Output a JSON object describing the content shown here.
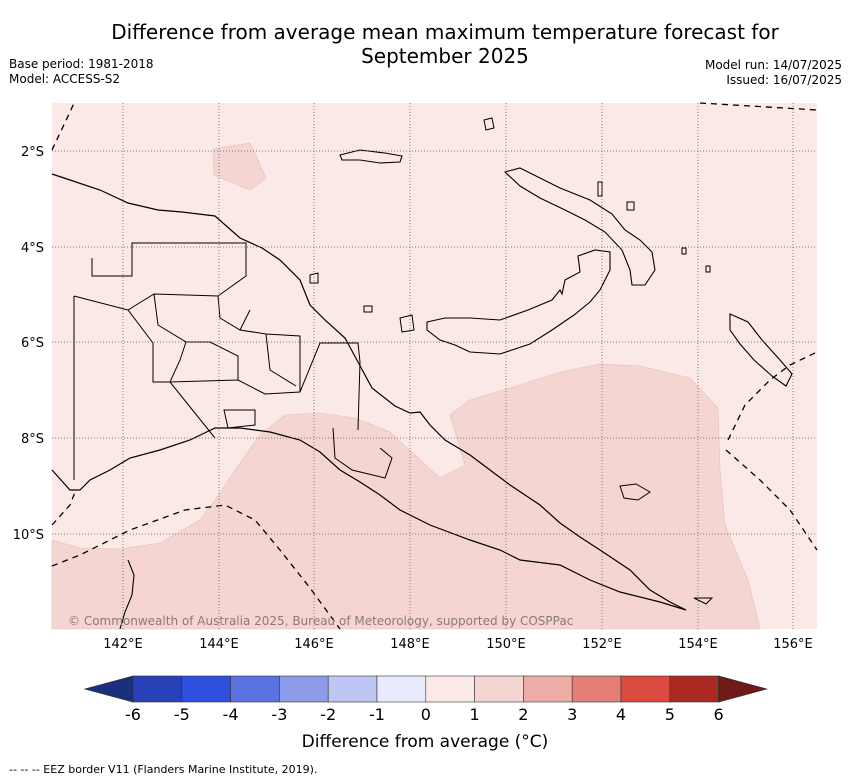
{
  "title": {
    "line1": "Difference from average mean maximum temperature forecast for",
    "line2": "September 2025"
  },
  "meta_left": {
    "base_period": "Base period: 1981-2018",
    "model": "Model: ACCESS-S2"
  },
  "meta_right": {
    "model_run": "Model run: 14/07/2025",
    "issued": "Issued: 16/07/2025"
  },
  "map": {
    "lat_labels": [
      "2°S",
      "4°S",
      "6°S",
      "8°S",
      "10°S"
    ],
    "lon_labels": [
      "142°E",
      "144°E",
      "146°E",
      "148°E",
      "150°E",
      "152°E",
      "154°E",
      "156°E"
    ],
    "credit": "© Commonwealth of Australia 2025, Bureau of Meteorology, supported by COSPPac",
    "base_fill_color": "#fbe9e7",
    "warm_fill_color": "#f5d5d1"
  },
  "colorbar": {
    "ticks": [
      "-6",
      "-5",
      "-4",
      "-3",
      "-2",
      "-1",
      "0",
      "1",
      "2",
      "3",
      "4",
      "5",
      "6"
    ],
    "colors": [
      "#1b2f7e",
      "#2742b8",
      "#2f4fdf",
      "#5b72e3",
      "#8c9bea",
      "#c0c6f3",
      "#e8ebfb",
      "#fbe9e7",
      "#f5d5d1",
      "#eeaca6",
      "#e47f78",
      "#db4b3f",
      "#aa2a23",
      "#6e1a16"
    ],
    "label": "Difference from average (°C)"
  },
  "footnote": "--  --  -- EEZ border V11 (Flanders Marine Institute, 2019)."
}
